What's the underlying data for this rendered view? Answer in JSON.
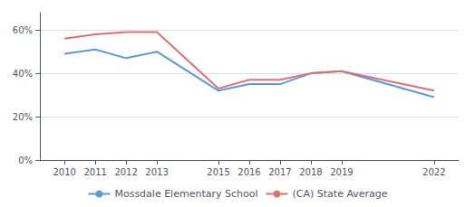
{
  "chart_data": {
    "type": "line",
    "x": [
      2010,
      2011,
      2012,
      2013,
      2015,
      2016,
      2017,
      2018,
      2019,
      2022
    ],
    "series": [
      {
        "name": "Mossdale Elementary School",
        "color": "#5b9bd5",
        "values": [
          0.49,
          0.51,
          0.47,
          0.5,
          0.32,
          0.35,
          0.35,
          0.4,
          0.41,
          0.29
        ]
      },
      {
        "name": "(CA) State Average",
        "color": "#e07070",
        "values": [
          0.56,
          0.58,
          0.59,
          0.59,
          0.33,
          0.37,
          0.37,
          0.4,
          0.41,
          0.32
        ]
      }
    ],
    "xlim": [
      2009.2,
      2022.8
    ],
    "xticks": [
      2010,
      2011,
      2012,
      2013,
      2015,
      2016,
      2017,
      2018,
      2019,
      2022
    ],
    "ylim": [
      0,
      0.68
    ],
    "yticks": [
      {
        "value": 0,
        "label": "0%"
      },
      {
        "value": 0.2,
        "label": "20%"
      },
      {
        "value": 0.4,
        "label": "40%"
      },
      {
        "value": 0.6,
        "label": "60%"
      }
    ],
    "grid": "y",
    "legend": "bottom"
  }
}
